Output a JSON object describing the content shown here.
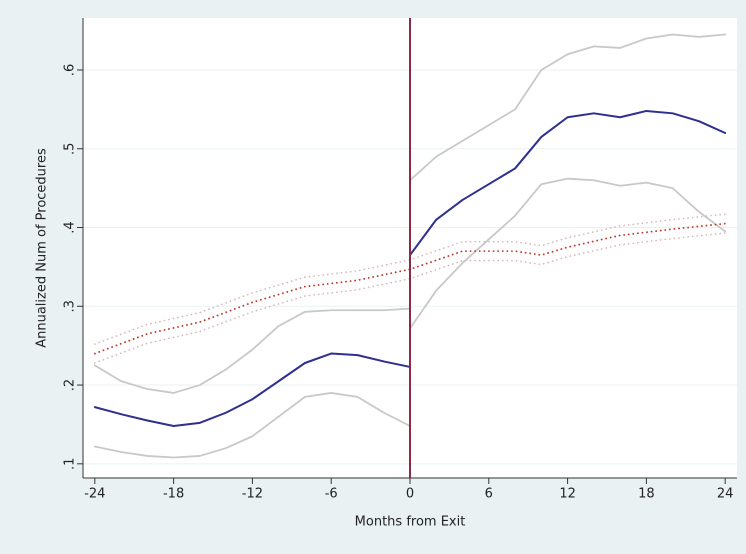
{
  "chart_data": {
    "type": "line",
    "x_label": "Months from Exit",
    "y_label": "Annualized Num of Procedures",
    "xlim": [
      -24.9,
      24.9
    ],
    "ylim": [
      0.082,
      0.666
    ],
    "xticks": [
      -24,
      -18,
      -12,
      -6,
      0,
      6,
      12,
      18,
      24
    ],
    "yticks": [
      {
        "value": 0.1,
        "label": ".1"
      },
      {
        "value": 0.2,
        "label": ".2"
      },
      {
        "value": 0.3,
        "label": ".3"
      },
      {
        "value": 0.4,
        "label": ".4"
      },
      {
        "value": 0.5,
        "label": ".5"
      },
      {
        "value": 0.6,
        "label": ".6"
      }
    ],
    "grid": true,
    "reference_line": {
      "x": 0,
      "color": "#8c2a45"
    },
    "series": [
      {
        "color": "#2e2f8f",
        "style": "solid",
        "width": 2,
        "x": [
          -24,
          -22,
          -20,
          -18,
          -16,
          -14,
          -12,
          -10,
          -8,
          -6,
          -4,
          -2,
          0
        ],
        "values": [
          0.172,
          0.163,
          0.155,
          0.148,
          0.152,
          0.165,
          0.182,
          0.205,
          0.228,
          0.24,
          0.238,
          0.23,
          0.223
        ]
      },
      {
        "color": "#c8c8c8",
        "style": "solid",
        "width": 1.8,
        "x": [
          -24,
          -22,
          -20,
          -18,
          -16,
          -14,
          -12,
          -10,
          -8,
          -6,
          -4,
          -2,
          0
        ],
        "values": [
          0.225,
          0.205,
          0.195,
          0.19,
          0.2,
          0.22,
          0.245,
          0.275,
          0.293,
          0.295,
          0.295,
          0.295,
          0.297
        ]
      },
      {
        "color": "#c8c8c8",
        "style": "solid",
        "width": 1.8,
        "x": [
          -24,
          -22,
          -20,
          -18,
          -16,
          -14,
          -12,
          -10,
          -8,
          -6,
          -4,
          -2,
          0
        ],
        "values": [
          0.122,
          0.115,
          0.11,
          0.108,
          0.11,
          0.12,
          0.135,
          0.16,
          0.185,
          0.19,
          0.185,
          0.165,
          0.148
        ]
      },
      {
        "color": "#2e2f8f",
        "style": "solid",
        "width": 2,
        "x": [
          0,
          2,
          4,
          6,
          8,
          10,
          12,
          14,
          16,
          18,
          20,
          22,
          24
        ],
        "values": [
          0.365,
          0.41,
          0.435,
          0.455,
          0.475,
          0.515,
          0.54,
          0.545,
          0.54,
          0.548,
          0.545,
          0.535,
          0.52
        ]
      },
      {
        "color": "#c8c8c8",
        "style": "solid",
        "width": 1.8,
        "x": [
          0,
          2,
          4,
          6,
          8,
          10,
          12,
          14,
          16,
          18,
          20,
          22,
          24
        ],
        "values": [
          0.46,
          0.49,
          0.51,
          0.53,
          0.55,
          0.6,
          0.62,
          0.63,
          0.628,
          0.64,
          0.645,
          0.642,
          0.645
        ]
      },
      {
        "color": "#c8c8c8",
        "style": "solid",
        "width": 1.8,
        "x": [
          0,
          2,
          4,
          6,
          8,
          10,
          12,
          14,
          16,
          18,
          20,
          22,
          24
        ],
        "values": [
          0.272,
          0.32,
          0.355,
          0.385,
          0.415,
          0.455,
          0.462,
          0.46,
          0.453,
          0.457,
          0.45,
          0.42,
          0.395
        ]
      },
      {
        "color": "#c0392b",
        "style": "dotted",
        "width": 1.8,
        "x": [
          -24,
          -20,
          -16,
          -12,
          -8,
          -4,
          0,
          4,
          8,
          10,
          12,
          16,
          20,
          24
        ],
        "values": [
          0.24,
          0.265,
          0.28,
          0.305,
          0.325,
          0.333,
          0.347,
          0.37,
          0.37,
          0.365,
          0.375,
          0.39,
          0.398,
          0.405
        ]
      },
      {
        "color": "#d6b4b4",
        "style": "dotted",
        "width": 1.6,
        "x": [
          -24,
          -20,
          -16,
          -12,
          -8,
          -4,
          0,
          4,
          8,
          10,
          12,
          16,
          20,
          24
        ],
        "values": [
          0.252,
          0.277,
          0.292,
          0.317,
          0.337,
          0.345,
          0.359,
          0.382,
          0.382,
          0.377,
          0.387,
          0.402,
          0.41,
          0.417
        ]
      },
      {
        "color": "#d6b4b4",
        "style": "dotted",
        "width": 1.6,
        "x": [
          -24,
          -20,
          -16,
          -12,
          -8,
          -4,
          0,
          4,
          8,
          10,
          12,
          16,
          20,
          24
        ],
        "values": [
          0.228,
          0.253,
          0.268,
          0.293,
          0.313,
          0.321,
          0.335,
          0.358,
          0.358,
          0.353,
          0.363,
          0.378,
          0.386,
          0.393
        ]
      }
    ]
  }
}
